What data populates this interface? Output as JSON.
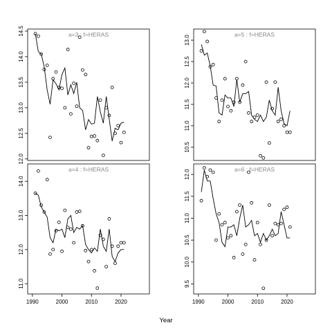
{
  "x_label": "Year",
  "chart_data": [
    {
      "type": "line",
      "title": "a=3  :  f=HERAS",
      "x": [
        1991,
        1992,
        1993,
        1994,
        1995,
        1996,
        1997,
        1998,
        1999,
        2000,
        2001,
        2002,
        2003,
        2004,
        2005,
        2006,
        2007,
        2008,
        2009,
        2010,
        2011,
        2012,
        2013,
        2014,
        2015,
        2016,
        2017,
        2018,
        2019,
        2020,
        2021
      ],
      "series": [
        {
          "style": "line",
          "color": "#000000",
          "values": [
            14.45,
            14.1,
            14.05,
            13.8,
            13.35,
            13.07,
            13.55,
            13.47,
            13.35,
            13.65,
            13.78,
            13.25,
            13.45,
            13.28,
            13.5,
            13.0,
            12.95,
            12.57,
            12.77,
            12.68,
            12.7,
            13.22,
            12.92,
            12.7,
            13.22,
            12.78,
            12.35,
            12.6,
            12.57,
            12.7,
            12.72
          ]
        },
        {
          "style": "points",
          "color": "#000000",
          "values": [
            14.45,
            14.4,
            14.05,
            13.75,
            13.83,
            12.42,
            13.57,
            13.7,
            13.4,
            13.38,
            13.0,
            14.14,
            12.88,
            13.48,
            13.03,
            14.38,
            13.74,
            13.65,
            12.22,
            12.44,
            12.45,
            12.36,
            13.15,
            12.07,
            13.0,
            12.85,
            13.4,
            12.5,
            12.65,
            12.32,
            12.52
          ]
        }
      ],
      "xlim": [
        1988.4,
        2029.6
      ],
      "ylim": [
        11.97,
        14.54
      ],
      "yticks": [
        {
          "value": 12,
          "label": "12.0"
        },
        12.5,
        {
          "value": 13,
          "label": "13.0"
        },
        13.5,
        {
          "value": 14,
          "label": "14.0"
        },
        14.5
      ]
    },
    {
      "type": "line",
      "title": "a=5  :  f=HERAS",
      "x": [
        1991,
        1992,
        1993,
        1994,
        1995,
        1996,
        1997,
        1998,
        1999,
        2000,
        2001,
        2002,
        2003,
        2004,
        2005,
        2006,
        2007,
        2008,
        2009,
        2010,
        2011,
        2012,
        2013,
        2014,
        2015,
        2016,
        2017,
        2018,
        2019,
        2020,
        2021
      ],
      "series": [
        {
          "style": "line",
          "color": "#000000",
          "values": [
            12.9,
            12.65,
            12.7,
            12.4,
            11.95,
            11.93,
            11.3,
            11.25,
            11.72,
            11.65,
            11.65,
            11.45,
            12.08,
            11.55,
            11.75,
            11.75,
            11.8,
            11.25,
            11.15,
            11.1,
            11.25,
            11.1,
            11.2,
            11.6,
            11.35,
            11.25,
            11.9,
            11.35,
            11.05,
            11.0,
            11.35
          ]
        },
        {
          "style": "points",
          "color": "#000000",
          "values": [
            12.75,
            13.2,
            12.97,
            12.38,
            12.43,
            11.65,
            11.1,
            11.6,
            12.1,
            11.45,
            11.35,
            11.55,
            12.1,
            11.55,
            11.95,
            12.5,
            11.3,
            11.1,
            11.2,
            11.25,
            10.3,
            10.25,
            12.02,
            10.6,
            11.4,
            12.02,
            11.1,
            11.15,
            11.0,
            10.85,
            10.85
          ]
        }
      ],
      "xlim": [
        1988.4,
        2029.6
      ],
      "ylim": [
        10.19,
        13.26
      ],
      "yticks": [
        10.5,
        {
          "value": 11,
          "label": "11.0"
        },
        11.5,
        {
          "value": 12,
          "label": "12.0"
        },
        12.5,
        {
          "value": 13,
          "label": "13.0"
        }
      ]
    },
    {
      "type": "line",
      "title": "a=4  :  f=HERAS",
      "x": [
        1991,
        1992,
        1993,
        1994,
        1995,
        1996,
        1997,
        1998,
        1999,
        2000,
        2001,
        2002,
        2003,
        2004,
        2005,
        2006,
        2007,
        2008,
        2009,
        2010,
        2011,
        2012,
        2013,
        2014,
        2015,
        2016,
        2017,
        2018,
        2019,
        2020,
        2021
      ],
      "series": [
        {
          "style": "line",
          "color": "#000000",
          "values": [
            13.65,
            13.6,
            13.25,
            13.1,
            12.95,
            12.35,
            12.2,
            12.6,
            12.55,
            12.6,
            12.35,
            12.9,
            13.0,
            12.5,
            12.65,
            12.6,
            12.7,
            12.15,
            12.0,
            11.9,
            12.05,
            11.95,
            12.6,
            12.1,
            11.95,
            12.6,
            11.8,
            11.65,
            11.9,
            12.0,
            12.0
          ]
        },
        {
          "style": "points",
          "color": "#000000",
          "values": [
            13.65,
            14.3,
            13.3,
            13.1,
            14.05,
            11.87,
            12.0,
            12.55,
            12.8,
            11.95,
            13.15,
            12.65,
            12.6,
            12.2,
            13.1,
            13.12,
            12.7,
            11.97,
            11.65,
            12.0,
            11.38,
            10.87,
            12.42,
            12.3,
            11.5,
            12.9,
            12.1,
            11.6,
            12.1,
            12.2,
            12.2
          ]
        }
      ],
      "xlim": [
        1988.4,
        2029.6
      ],
      "ylim": [
        10.7,
        14.51
      ],
      "yticks": [
        {
          "value": 11,
          "label": "11.0"
        },
        {
          "value": 12,
          "label": "12.0"
        },
        {
          "value": 13,
          "label": "13.0"
        },
        {
          "value": 14,
          "label": "14.0"
        }
      ],
      "xticks": [
        1990,
        2000,
        2010,
        2020
      ]
    },
    {
      "type": "line",
      "title": "a=6  :  f=HERAS",
      "x": [
        1991,
        1992,
        1993,
        1994,
        1995,
        1996,
        1997,
        1998,
        1999,
        2000,
        2001,
        2002,
        2003,
        2004,
        2005,
        2006,
        2007,
        2008,
        2009,
        2010,
        2011,
        2012,
        2013,
        2014,
        2015,
        2016,
        2017,
        2018,
        2019,
        2020,
        2021
      ],
      "series": [
        {
          "style": "line",
          "color": "#000000",
          "values": [
            11.6,
            12.1,
            11.85,
            11.85,
            11.45,
            11.1,
            10.9,
            10.45,
            10.35,
            10.8,
            10.8,
            10.85,
            10.6,
            11.0,
            11.3,
            10.8,
            10.85,
            10.95,
            10.6,
            10.65,
            10.45,
            10.65,
            10.5,
            10.6,
            10.75,
            10.6,
            10.65,
            11.15,
            10.85,
            10.55,
            10.55
          ]
        },
        {
          "style": "points",
          "color": "#000000",
          "values": [
            11.4,
            12.15,
            11.95,
            12.1,
            12.05,
            10.5,
            11.1,
            10.85,
            10.9,
            10.55,
            10.6,
            10.1,
            11.15,
            11.3,
            10.18,
            10.4,
            12.05,
            11.35,
            10.05,
            10.9,
            10.4,
            9.4,
            10.5,
            11.3,
            10.6,
            10.88,
            10.85,
            10.88,
            11.2,
            11.25,
            10.8
          ]
        }
      ],
      "xlim": [
        1988.4,
        2029.6
      ],
      "ylim": [
        9.27,
        12.24
      ],
      "yticks": [
        9.5,
        {
          "value": 10,
          "label": "10.0"
        },
        10.5,
        {
          "value": 11,
          "label": "11.0"
        },
        11.5,
        {
          "value": 12,
          "label": "12.0"
        }
      ],
      "xticks": [
        1990,
        2000,
        2010,
        2020
      ]
    }
  ]
}
